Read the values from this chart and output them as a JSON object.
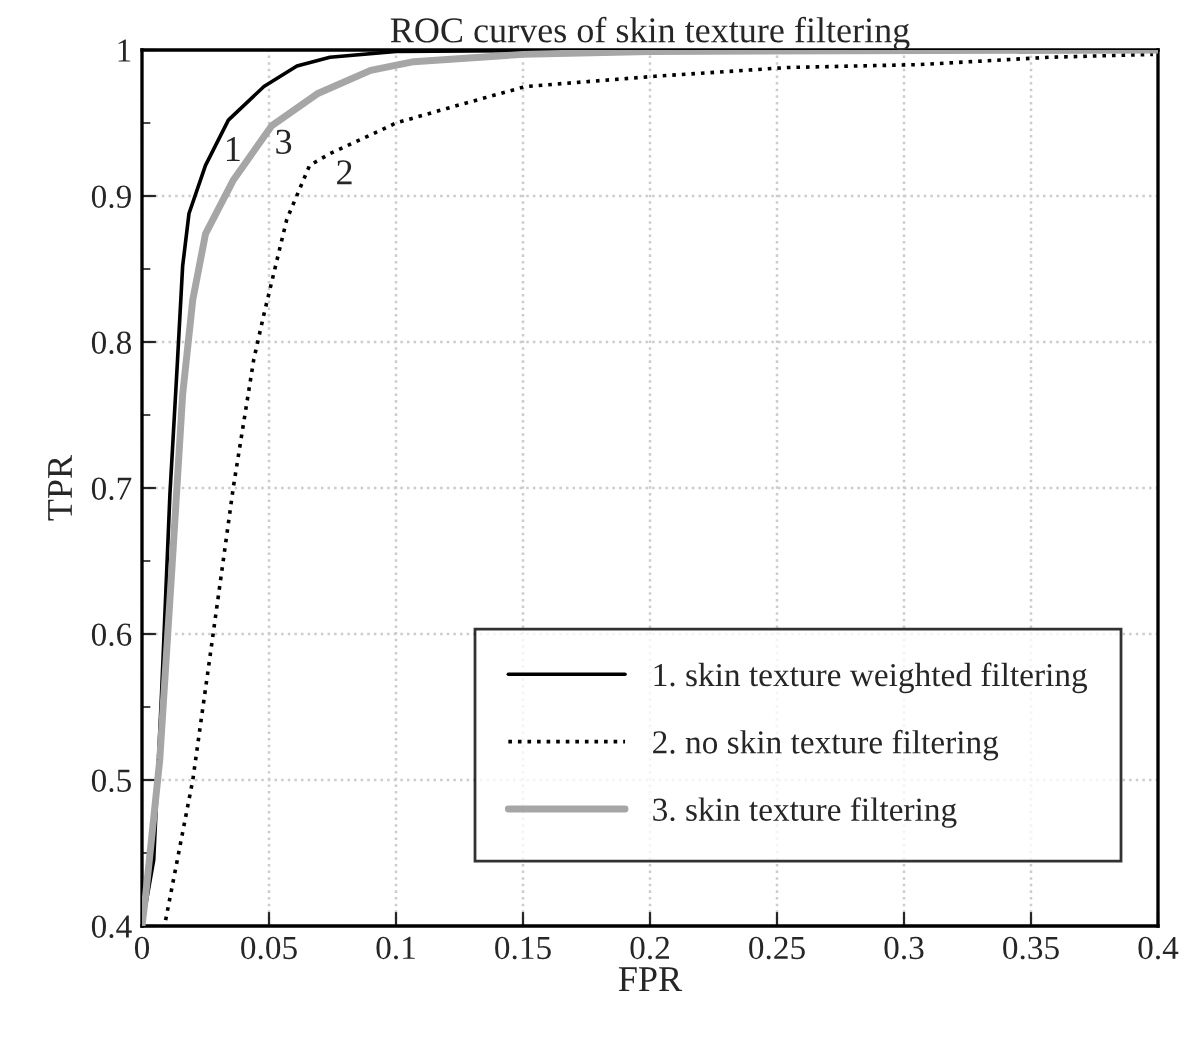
{
  "chart_data": {
    "type": "line",
    "title": "ROC curves of skin texture filtering",
    "xlabel": "FPR",
    "ylabel": "TPR",
    "xlim": [
      0,
      0.4
    ],
    "ylim": [
      0.4,
      1
    ],
    "xticks": [
      0,
      0.05,
      0.1,
      0.15,
      0.2,
      0.25,
      0.3,
      0.35,
      0.4
    ],
    "yticks": [
      0.4,
      {
        "value": 0.45,
        "label": null
      },
      0.5,
      {
        "value": 0.55,
        "label": null
      },
      0.6,
      {
        "value": 0.65,
        "label": null
      },
      0.7,
      {
        "value": 0.75,
        "label": null
      },
      0.8,
      {
        "value": 0.85,
        "label": null
      },
      0.9,
      {
        "value": 0.95,
        "label": null
      },
      1
    ],
    "grid": true,
    "legend": "bottom right",
    "series": [
      {
        "name": "1. skin texture weighted filtering",
        "color": "#000000",
        "line_style": "solid",
        "x": [
          0,
          0.0046,
          0.0077,
          0.011,
          0.014,
          0.016,
          0.0185,
          0.025,
          0.034,
          0.048,
          0.061,
          0.074,
          0.1,
          0.2,
          0.4
        ],
        "values": [
          0.4,
          0.445,
          0.559,
          0.696,
          0.788,
          0.852,
          0.888,
          0.921,
          0.952,
          0.975,
          0.989,
          0.995,
          0.999,
          1.0,
          1.0
        ]
      },
      {
        "name": "2. no skin texture filtering",
        "color": "#000000",
        "line_style": "dotted",
        "x": [
          0.0093,
          0.02,
          0.028,
          0.036,
          0.044,
          0.048,
          0.057,
          0.066,
          0.074,
          0.094,
          0.1,
          0.12,
          0.151,
          0.202,
          0.254,
          0.306,
          0.357,
          0.398
        ],
        "values": [
          0.404,
          0.5,
          0.6,
          0.701,
          0.788,
          0.819,
          0.884,
          0.921,
          0.929,
          0.945,
          0.95,
          0.96,
          0.975,
          0.982,
          0.988,
          0.99,
          0.995,
          0.997
        ]
      },
      {
        "name": "3. skin texture filtering",
        "color": "#a6a6a6",
        "line_style": "solid",
        "x": [
          0,
          0.0015,
          0.007,
          0.012,
          0.016,
          0.02,
          0.025,
          0.036,
          0.051,
          0.069,
          0.09,
          0.107,
          0.15,
          0.2,
          0.4
        ],
        "values": [
          0.4,
          0.422,
          0.514,
          0.651,
          0.764,
          0.829,
          0.874,
          0.911,
          0.948,
          0.97,
          0.986,
          0.992,
          0.997,
          0.999,
          1.0
        ]
      }
    ],
    "annotations": [
      {
        "text": "1",
        "x": 0.03,
        "y": 0.945
      },
      {
        "text": "3",
        "x": 0.05,
        "y": 0.95
      },
      {
        "text": "2",
        "x": 0.074,
        "y": 0.929
      }
    ]
  }
}
